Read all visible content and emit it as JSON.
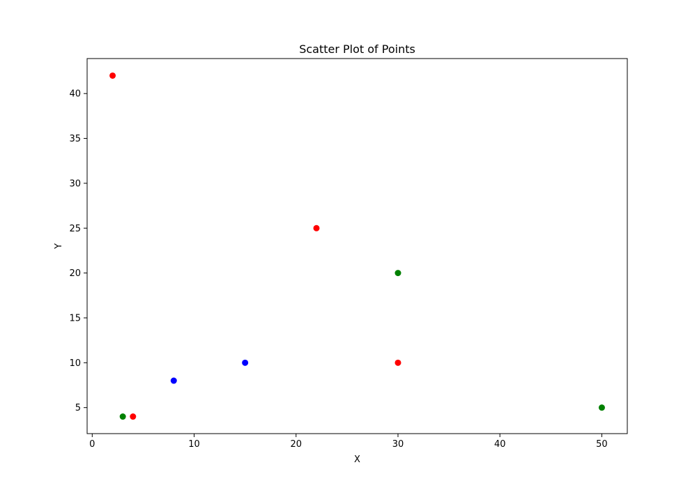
{
  "chart_data": {
    "type": "scatter",
    "title": "Scatter Plot of Points",
    "xlabel": "X",
    "ylabel": "Y",
    "xlim": [
      -0.5,
      52.5
    ],
    "ylim": [
      2.1,
      43.9
    ],
    "x_ticks": [
      0,
      10,
      20,
      30,
      40,
      50
    ],
    "x_tick_labels": [
      "0",
      "10",
      "20",
      "30",
      "40",
      "50"
    ],
    "y_ticks": [
      5,
      10,
      15,
      20,
      25,
      30,
      35,
      40
    ],
    "y_tick_labels": [
      "5",
      "10",
      "15",
      "20",
      "25",
      "30",
      "35",
      "40"
    ],
    "grid": false,
    "points": [
      {
        "x": 2,
        "y": 42,
        "color": "#ff0000"
      },
      {
        "x": 4,
        "y": 4,
        "color": "#ff0000"
      },
      {
        "x": 22,
        "y": 25,
        "color": "#ff0000"
      },
      {
        "x": 30,
        "y": 10,
        "color": "#ff0000"
      },
      {
        "x": 8,
        "y": 8,
        "color": "#0000ff"
      },
      {
        "x": 15,
        "y": 10,
        "color": "#0000ff"
      },
      {
        "x": 3,
        "y": 4,
        "color": "#008000"
      },
      {
        "x": 30,
        "y": 20,
        "color": "#008000"
      },
      {
        "x": 50,
        "y": 5,
        "color": "#008000"
      }
    ]
  }
}
